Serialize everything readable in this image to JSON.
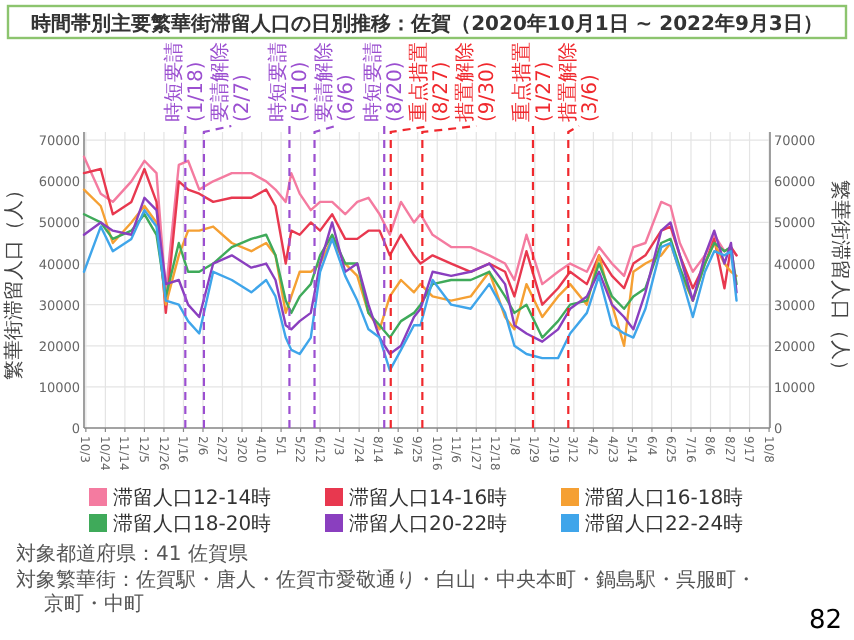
{
  "chart_data": {
    "type": "line",
    "title": "時間帯別主要繁華街滞留人口の日別推移：佐賀（2020年10月1日 ~ 2022年9月3日）",
    "ylabel": "繁華街滞留人口（人）",
    "y2label": "繁華街滞留人口（人）",
    "x": [
      "2020-10-01",
      "2020-10-19",
      "2020-11-01",
      "2020-11-21",
      "2020-12-05",
      "2020-12-18",
      "2020-12-28",
      "2021-01-11",
      "2021-01-21",
      "2021-02-02",
      "2021-02-17",
      "2021-03-09",
      "2021-03-30",
      "2021-04-15",
      "2021-04-25",
      "2021-05-06",
      "2021-05-12",
      "2021-05-21",
      "2021-06-02",
      "2021-06-12",
      "2021-06-25",
      "2021-07-09",
      "2021-07-22",
      "2021-08-03",
      "2021-08-15",
      "2021-08-26",
      "2021-09-07",
      "2021-09-21",
      "2021-09-28",
      "2021-10-11",
      "2021-10-31",
      "2021-11-21",
      "2021-12-11",
      "2021-12-28",
      "2022-01-07",
      "2022-01-20",
      "2022-02-06",
      "2022-02-23",
      "2022-03-08",
      "2022-03-26",
      "2022-04-08",
      "2022-04-22",
      "2022-05-05",
      "2022-05-15",
      "2022-05-28",
      "2022-06-14",
      "2022-06-24",
      "2022-07-04",
      "2022-07-18",
      "2022-07-31",
      "2022-08-10",
      "2022-08-21",
      "2022-08-28",
      "2022-09-03"
    ],
    "series": [
      {
        "name": "滞留人口12-14時",
        "color": "#f47ba0",
        "values": [
          66000,
          57000,
          55000,
          60000,
          65000,
          62000,
          33000,
          64000,
          65000,
          58000,
          60000,
          62000,
          62000,
          60000,
          58000,
          55000,
          62000,
          57000,
          53000,
          55000,
          55000,
          52000,
          55000,
          56000,
          52000,
          47000,
          55000,
          50000,
          52000,
          47000,
          44000,
          44000,
          42000,
          40000,
          36000,
          47000,
          35000,
          38000,
          40000,
          38000,
          44000,
          40000,
          37000,
          44000,
          45000,
          55000,
          54000,
          45000,
          38000,
          42000,
          47000,
          43000,
          44000,
          42000
        ]
      },
      {
        "name": "滞留人口14-16時",
        "color": "#e8384f",
        "values": [
          62000,
          63000,
          52000,
          55000,
          63000,
          55000,
          28000,
          60000,
          58000,
          57000,
          55000,
          56000,
          56000,
          58000,
          54000,
          40000,
          48000,
          47000,
          50000,
          48000,
          52000,
          46000,
          46000,
          48000,
          48000,
          42000,
          47000,
          42000,
          40000,
          42000,
          40000,
          38000,
          40000,
          38000,
          32000,
          43000,
          30000,
          34000,
          38000,
          35000,
          42000,
          37000,
          34000,
          40000,
          42000,
          48000,
          49000,
          42000,
          34000,
          40000,
          46000,
          34000,
          44000,
          42000
        ]
      },
      {
        "name": "滞留人口16-18時",
        "color": "#f5a033",
        "values": [
          58000,
          54000,
          45000,
          50000,
          54000,
          50000,
          30000,
          42000,
          48000,
          48000,
          49000,
          45000,
          43000,
          45000,
          42000,
          28000,
          32000,
          38000,
          38000,
          40000,
          46000,
          40000,
          37000,
          28000,
          24000,
          32000,
          36000,
          33000,
          35000,
          32000,
          31000,
          32000,
          38000,
          27000,
          24000,
          35000,
          27000,
          32000,
          35000,
          30000,
          42000,
          30000,
          20000,
          38000,
          40000,
          42000,
          45000,
          38000,
          31000,
          40000,
          45000,
          40000,
          38000,
          37000
        ]
      },
      {
        "name": "滞留人口18-20時",
        "color": "#3faa5a",
        "values": [
          52000,
          50000,
          46000,
          48000,
          52000,
          47000,
          32000,
          45000,
          38000,
          38000,
          40000,
          44000,
          46000,
          47000,
          42000,
          31000,
          28000,
          32000,
          35000,
          42000,
          47000,
          40000,
          40000,
          28000,
          25000,
          22000,
          26000,
          28000,
          30000,
          35000,
          36000,
          36000,
          38000,
          32000,
          28000,
          30000,
          22000,
          26000,
          30000,
          31000,
          40000,
          32000,
          29000,
          32000,
          34000,
          45000,
          46000,
          39000,
          31000,
          40000,
          45000,
          43000,
          44000,
          35000
        ]
      },
      {
        "name": "滞留人口20-22時",
        "color": "#8a3fbf",
        "values": [
          47000,
          50000,
          48000,
          47000,
          56000,
          53000,
          35000,
          36000,
          30000,
          27000,
          40000,
          42000,
          39000,
          40000,
          36000,
          25000,
          24000,
          26000,
          28000,
          40000,
          50000,
          38000,
          40000,
          30000,
          22000,
          18000,
          20000,
          27000,
          29000,
          38000,
          37000,
          38000,
          40000,
          35000,
          25000,
          23000,
          21000,
          24000,
          29000,
          32000,
          38000,
          30000,
          27000,
          24000,
          33000,
          48000,
          50000,
          42000,
          31000,
          42000,
          48000,
          40000,
          45000,
          33000
        ]
      },
      {
        "name": "滞留人口22-24時",
        "color": "#3fa5ea",
        "values": [
          38000,
          49000,
          43000,
          46000,
          53000,
          49000,
          31000,
          30000,
          26000,
          23000,
          38000,
          36000,
          33000,
          36000,
          32000,
          22000,
          19000,
          18000,
          22000,
          38000,
          46000,
          37000,
          31000,
          24000,
          22000,
          14000,
          19000,
          25000,
          25000,
          36000,
          30000,
          29000,
          35000,
          28000,
          20000,
          18000,
          17000,
          17000,
          23000,
          28000,
          37000,
          25000,
          23000,
          22000,
          29000,
          44000,
          45000,
          38000,
          27000,
          38000,
          43000,
          42000,
          43000,
          31000
        ]
      }
    ],
    "xlim": [
      "2020-10-01",
      "2022-10-09"
    ],
    "xticks": [
      {
        "value": "2020-10-03",
        "label": "10/3"
      },
      {
        "value": "2020-10-24",
        "label": "10/24"
      },
      {
        "value": "2020-11-14",
        "label": "11/14"
      },
      {
        "value": "2020-12-05",
        "label": "12/5"
      },
      {
        "value": "2020-12-26",
        "label": "12/26"
      },
      {
        "value": "2021-01-16",
        "label": "1/16"
      },
      {
        "value": "2021-02-06",
        "label": "2/6"
      },
      {
        "value": "2021-02-27",
        "label": "2/27"
      },
      {
        "value": "2021-03-20",
        "label": "3/20"
      },
      {
        "value": "2021-04-10",
        "label": "4/10"
      },
      {
        "value": "2021-05-01",
        "label": "5/1"
      },
      {
        "value": "2021-05-22",
        "label": "5/22"
      },
      {
        "value": "2021-06-12",
        "label": "6/12"
      },
      {
        "value": "2021-07-03",
        "label": "7/3"
      },
      {
        "value": "2021-07-24",
        "label": "7/24"
      },
      {
        "value": "2021-08-14",
        "label": "8/14"
      },
      {
        "value": "2021-09-04",
        "label": "9/4"
      },
      {
        "value": "2021-09-25",
        "label": "9/25"
      },
      {
        "value": "2021-10-16",
        "label": "10/16"
      },
      {
        "value": "2021-11-06",
        "label": "11/6"
      },
      {
        "value": "2021-11-27",
        "label": "11/27"
      },
      {
        "value": "2021-12-18",
        "label": "12/18"
      },
      {
        "value": "2022-01-08",
        "label": "1/8"
      },
      {
        "value": "2022-01-29",
        "label": "1/29"
      },
      {
        "value": "2022-02-19",
        "label": "2/19"
      },
      {
        "value": "2022-03-12",
        "label": "3/12"
      },
      {
        "value": "2022-04-02",
        "label": "4/2"
      },
      {
        "value": "2022-04-23",
        "label": "4/23"
      },
      {
        "value": "2022-05-14",
        "label": "5/14"
      },
      {
        "value": "2022-06-04",
        "label": "6/4"
      },
      {
        "value": "2022-06-25",
        "label": "6/25"
      },
      {
        "value": "2022-07-16",
        "label": "7/16"
      },
      {
        "value": "2022-08-06",
        "label": "8/6"
      },
      {
        "value": "2022-08-27",
        "label": "8/27"
      },
      {
        "value": "2022-09-17",
        "label": "9/17"
      },
      {
        "value": "2022-10-08",
        "label": "10/8"
      }
    ],
    "ylim": [
      0,
      72000
    ],
    "yticks": [
      0,
      10000,
      20000,
      30000,
      40000,
      50000,
      60000,
      70000
    ],
    "y2lim": [
      0,
      72000
    ],
    "y2ticks": [
      0,
      10000,
      20000,
      30000,
      40000,
      50000,
      60000,
      70000
    ],
    "grid": true,
    "legend": "bottom",
    "marker": "none",
    "line_style": "solid",
    "ref_lines": [
      {
        "axis": "x",
        "value": "2021-01-18",
        "label": "時短要請(1/18)",
        "color": "#9b4fd0",
        "line_style": "dashed"
      },
      {
        "axis": "x",
        "value": "2021-02-07",
        "label": "要請解除(2/7)",
        "color": "#9b4fd0",
        "line_style": "dashed"
      },
      {
        "axis": "x",
        "value": "2021-05-10",
        "label": "時短要請(5/10)",
        "color": "#9b4fd0",
        "line_style": "dashed"
      },
      {
        "axis": "x",
        "value": "2021-06-06",
        "label": "要請解除(6/6)",
        "color": "#9b4fd0",
        "line_style": "dashed"
      },
      {
        "axis": "x",
        "value": "2021-08-20",
        "label": "時短要請(8/20)",
        "color": "#9b4fd0",
        "line_style": "dashed"
      },
      {
        "axis": "x",
        "value": "2021-08-27",
        "label": "重点措置(8/27)",
        "color": "#f0282d",
        "line_style": "dashed"
      },
      {
        "axis": "x",
        "value": "2021-09-30",
        "label": "措置解除(9/30)",
        "color": "#f0282d",
        "line_style": "dashed"
      },
      {
        "axis": "x",
        "value": "2022-01-27",
        "label": "重点措置(1/27)",
        "color": "#f0282d",
        "line_style": "dashed"
      },
      {
        "axis": "x",
        "value": "2022-03-06",
        "label": "措置解除(3/6)",
        "color": "#f0282d",
        "line_style": "dashed"
      }
    ],
    "annotations": [
      "対象都道府県：41 佐賀県",
      "対象繁華街：佐賀駅・唐人・佐賀市愛敬通り・白山・中央本町・鍋島駅・呉服町・京町・中町",
      "82"
    ]
  }
}
